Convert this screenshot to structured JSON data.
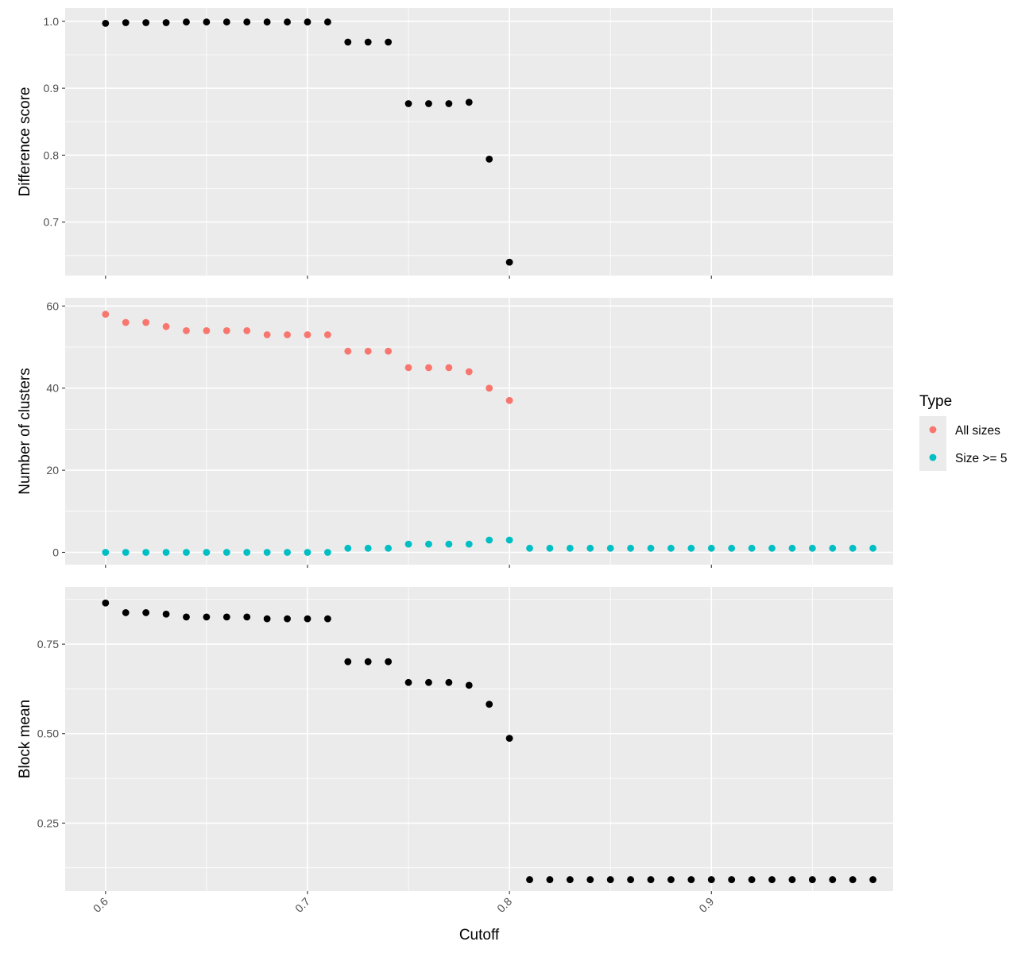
{
  "chart_data": {
    "type": "scatter",
    "xlabel": "Cutoff",
    "xlim": [
      0.58,
      0.99
    ],
    "x_ticks": [
      0.6,
      0.7,
      0.8,
      0.9
    ],
    "x_tick_labels": [
      "0.6",
      "0.7",
      "0.8",
      "0.9"
    ],
    "x_minor_ticks": [
      0.65,
      0.75,
      0.85,
      0.95
    ],
    "grid": true,
    "background": "#ebebeb",
    "legend": {
      "title": "Type",
      "position": "right",
      "entries": [
        {
          "label": "All sizes",
          "color": "#f8766d"
        },
        {
          "label": "Size >= 5",
          "color": "#00bfc4"
        }
      ]
    },
    "panels": [
      {
        "ylabel": "Difference score",
        "ylim": [
          0.62,
          1.02
        ],
        "y_ticks": [
          0.7,
          0.8,
          0.9,
          1.0
        ],
        "y_tick_labels": [
          "0.7",
          "0.8",
          "0.9",
          "1.0"
        ],
        "y_minor_ticks": [
          0.65,
          0.75,
          0.85,
          0.95
        ],
        "series": [
          {
            "color": "#000000",
            "x": [
              0.6,
              0.61,
              0.62,
              0.63,
              0.64,
              0.65,
              0.66,
              0.67,
              0.68,
              0.69,
              0.7,
              0.71,
              0.72,
              0.73,
              0.74,
              0.75,
              0.76,
              0.77,
              0.78,
              0.79,
              0.8
            ],
            "y": [
              0.997,
              0.998,
              0.998,
              0.998,
              0.999,
              0.999,
              0.999,
              0.999,
              0.999,
              0.999,
              0.999,
              0.999,
              0.969,
              0.969,
              0.969,
              0.877,
              0.877,
              0.877,
              0.879,
              0.794,
              0.64
            ]
          }
        ]
      },
      {
        "ylabel": "Number of clusters",
        "ylim": [
          -3,
          62
        ],
        "y_ticks": [
          0,
          20,
          40,
          60
        ],
        "y_tick_labels": [
          "0",
          "20",
          "40",
          "60"
        ],
        "y_minor_ticks": [
          10,
          30,
          50
        ],
        "series": [
          {
            "name": "All sizes",
            "color": "#f8766d",
            "x": [
              0.6,
              0.61,
              0.62,
              0.63,
              0.64,
              0.65,
              0.66,
              0.67,
              0.68,
              0.69,
              0.7,
              0.71,
              0.72,
              0.73,
              0.74,
              0.75,
              0.76,
              0.77,
              0.78,
              0.79,
              0.8
            ],
            "y": [
              58,
              56,
              56,
              55,
              54,
              54,
              54,
              54,
              53,
              53,
              53,
              53,
              49,
              49,
              49,
              45,
              45,
              45,
              44,
              40,
              37
            ]
          },
          {
            "name": "Size >= 5",
            "color": "#00bfc4",
            "x": [
              0.6,
              0.61,
              0.62,
              0.63,
              0.64,
              0.65,
              0.66,
              0.67,
              0.68,
              0.69,
              0.7,
              0.71,
              0.72,
              0.73,
              0.74,
              0.75,
              0.76,
              0.77,
              0.78,
              0.79,
              0.8,
              0.81,
              0.82,
              0.83,
              0.84,
              0.85,
              0.86,
              0.87,
              0.88,
              0.89,
              0.9,
              0.91,
              0.92,
              0.93,
              0.94,
              0.95,
              0.96,
              0.97,
              0.98
            ],
            "y": [
              0,
              0,
              0,
              0,
              0,
              0,
              0,
              0,
              0,
              0,
              0,
              0,
              1,
              1,
              1,
              2,
              2,
              2,
              2,
              3,
              3,
              1,
              1,
              1,
              1,
              1,
              1,
              1,
              1,
              1,
              1,
              1,
              1,
              1,
              1,
              1,
              1,
              1,
              1
            ]
          }
        ]
      },
      {
        "ylabel": "Block mean",
        "ylim": [
          0.06,
          0.91
        ],
        "y_ticks": [
          0.25,
          0.5,
          0.75
        ],
        "y_tick_labels": [
          "0.25",
          "0.50",
          "0.75"
        ],
        "y_minor_ticks": [
          0.125,
          0.375,
          0.625,
          0.875
        ],
        "series": [
          {
            "color": "#000000",
            "x": [
              0.6,
              0.61,
              0.62,
              0.63,
              0.64,
              0.65,
              0.66,
              0.67,
              0.68,
              0.69,
              0.7,
              0.71,
              0.72,
              0.73,
              0.74,
              0.75,
              0.76,
              0.77,
              0.78,
              0.79,
              0.8,
              0.81,
              0.82,
              0.83,
              0.84,
              0.85,
              0.86,
              0.87,
              0.88,
              0.89,
              0.9,
              0.91,
              0.92,
              0.93,
              0.94,
              0.95,
              0.96,
              0.97,
              0.98
            ],
            "y": [
              0.865,
              0.838,
              0.838,
              0.834,
              0.826,
              0.826,
              0.826,
              0.826,
              0.821,
              0.821,
              0.821,
              0.821,
              0.701,
              0.701,
              0.701,
              0.643,
              0.643,
              0.643,
              0.635,
              0.582,
              0.487,
              0.092,
              0.092,
              0.092,
              0.092,
              0.092,
              0.092,
              0.092,
              0.092,
              0.092,
              0.092,
              0.092,
              0.092,
              0.092,
              0.092,
              0.092,
              0.092,
              0.092,
              0.092
            ]
          }
        ]
      }
    ]
  }
}
